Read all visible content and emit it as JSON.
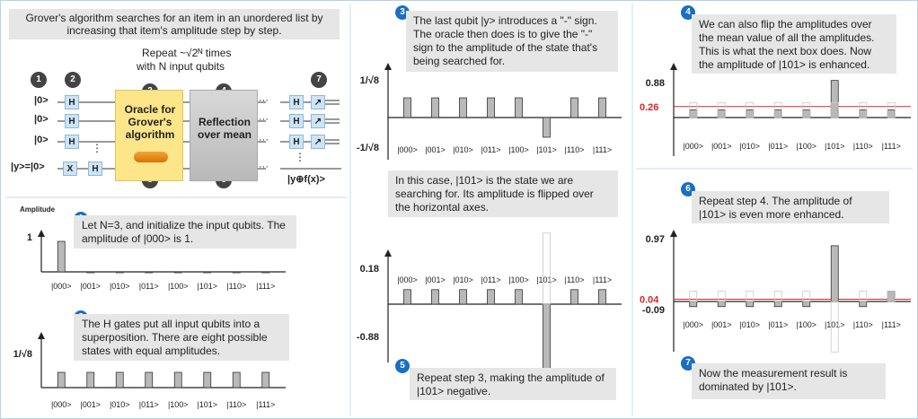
{
  "header": {
    "intro": "Grover's algorithm searches for an item in an unordered list by increasing that item's amplitude step by step.",
    "repeat_line1": "Repeat ~√2ᴺ times",
    "repeat_line2": "with N input qubits"
  },
  "circuit": {
    "badges": [
      "1",
      "2",
      "3",
      "4",
      "5",
      "6",
      "7"
    ],
    "wires": [
      "|0>",
      "|0>",
      "|0>",
      "|y>=|0>"
    ],
    "h": "H",
    "x": "X",
    "oracle": "Oracle for Grover's algorithm",
    "reflection": "Reflection over mean",
    "output": "|y⊕f(x)>",
    "dots": "⋮",
    "hdots": "···"
  },
  "axis": {
    "states": [
      "|000>",
      "|001>",
      "|010>",
      "|011>",
      "|100>",
      "|101>",
      "|110>",
      "|111>"
    ],
    "amplitude_label": "Amplitude"
  },
  "steps": {
    "s1": {
      "num": "1",
      "text": "Let N=3, and initialize the input qubits. The amplitude of |000> is 1."
    },
    "s2": {
      "num": "2",
      "text": "The H gates put all input qubits into a superposition. There are eight possible states with equal amplitudes."
    },
    "s3": {
      "num": "3",
      "text": "The last qubit |y> introduces a \"-\" sign. The oracle then does is to give the \"-\" sign to the amplitude of the state that's being searched for."
    },
    "s3b": {
      "text": "In this case, |101> is the state we are searching for. Its amplitude is flipped over the horizontal axes."
    },
    "s4": {
      "num": "4",
      "text": "We can also flip the amplitudes over the mean value of all the amplitudes. This is what the next box does. Now the amplitude of |101> is enhanced."
    },
    "s5": {
      "num": "5",
      "text": "Repeat step 3, making the amplitude of |101> negative."
    },
    "s6": {
      "num": "6",
      "text": "Repeat step 4. The amplitude of |101> is even more enhanced."
    },
    "s7": {
      "num": "7",
      "text": "Now the measurement result is dominated by |101>."
    }
  },
  "chart_data": [
    {
      "type": "bar",
      "id": "c1",
      "categories": [
        "|000>",
        "|001>",
        "|010>",
        "|011>",
        "|100>",
        "|101>",
        "|110>",
        "|111>"
      ],
      "values": [
        1,
        0,
        0,
        0,
        0,
        0,
        0,
        0
      ],
      "ytick_labels": [
        "1"
      ],
      "ylabel": "Amplitude"
    },
    {
      "type": "bar",
      "id": "c2",
      "categories": [
        "|000>",
        "|001>",
        "|010>",
        "|011>",
        "|100>",
        "|101>",
        "|110>",
        "|111>"
      ],
      "values": [
        0.354,
        0.354,
        0.354,
        0.354,
        0.354,
        0.354,
        0.354,
        0.354
      ],
      "ytick_labels": [
        "1/√8"
      ]
    },
    {
      "type": "bar",
      "id": "c3",
      "categories": [
        "|000>",
        "|001>",
        "|010>",
        "|011>",
        "|100>",
        "|101>",
        "|110>",
        "|111>"
      ],
      "values": [
        0.354,
        0.354,
        0.354,
        0.354,
        0.354,
        -0.354,
        0.354,
        0.354
      ],
      "ytick_labels": [
        "1/√8",
        "-1/√8"
      ]
    },
    {
      "type": "bar",
      "id": "c4",
      "categories": [
        "|000>",
        "|001>",
        "|010>",
        "|011>",
        "|100>",
        "|101>",
        "|110>",
        "|111>"
      ],
      "values": [
        0.18,
        0.18,
        0.18,
        0.18,
        0.18,
        0.88,
        0.18,
        0.18
      ],
      "ytick_labels": [
        "0.88"
      ],
      "mean": 0.26,
      "mean_label": "0.26"
    },
    {
      "type": "bar",
      "id": "c5",
      "categories": [
        "|000>",
        "|001>",
        "|010>",
        "|011>",
        "|100>",
        "|101>",
        "|110>",
        "|111>"
      ],
      "values": [
        0.18,
        0.18,
        0.18,
        0.18,
        0.18,
        -0.88,
        0.18,
        0.18
      ],
      "ytick_labels": [
        "0.18",
        "-0.88"
      ]
    },
    {
      "type": "bar",
      "id": "c6",
      "categories": [
        "|000>",
        "|001>",
        "|010>",
        "|011>",
        "|100>",
        "|101>",
        "|110>",
        "|111>"
      ],
      "values": [
        -0.09,
        -0.09,
        -0.09,
        -0.09,
        -0.09,
        0.97,
        -0.09,
        0.18
      ],
      "ytick_labels": [
        "0.97",
        "-0.09"
      ],
      "mean": 0.04,
      "mean_label": "0.04"
    }
  ]
}
